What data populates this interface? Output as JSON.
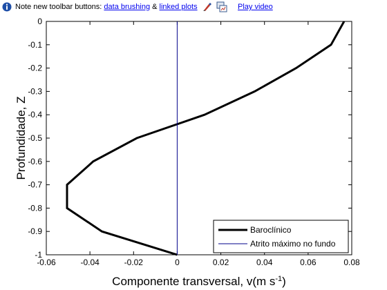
{
  "infobar": {
    "note_prefix": "Note new toolbar buttons: ",
    "link_brushing": "data brushing",
    "amp": " & ",
    "link_linked": "linked plots",
    "play_video": "Play video",
    "info_icon": "info-icon",
    "brush_icon": "data-brushing-icon",
    "link_icon": "linked-plots-icon"
  },
  "colors": {
    "series_baroclinico": "#000000",
    "series_atrito": "#00008b",
    "info_blue": "#1f4fa8"
  },
  "chart_data": {
    "type": "line",
    "title": "",
    "xlabel": "Componente transversal, v(m s",
    "xlabel_sup": "-1",
    "xlabel_end": ")",
    "ylabel": "Profundidade, Z",
    "xlim": [
      -0.06,
      0.08
    ],
    "ylim": [
      -1,
      0
    ],
    "xticks": [
      -0.06,
      -0.04,
      -0.02,
      0,
      0.02,
      0.04,
      0.06,
      0.08
    ],
    "xtick_labels": [
      "-0.06",
      "-0.04",
      "-0.02",
      "0",
      "0.02",
      "0.04",
      "0.06",
      "0.08"
    ],
    "yticks": [
      0,
      -0.1,
      -0.2,
      -0.3,
      -0.4,
      -0.5,
      -0.6,
      -0.7,
      -0.8,
      -0.9,
      -1
    ],
    "ytick_labels": [
      "0",
      "-0.1",
      "-0.2",
      "-0.3",
      "-0.4",
      "-0.5",
      "-0.6",
      "-0.7",
      "-0.8",
      "-0.9",
      "-1"
    ],
    "grid": false,
    "legend_position": "bottom-right",
    "series": [
      {
        "name": "Baroclínico",
        "x": [
          0.0765,
          0.0705,
          0.0545,
          0.0355,
          0.0125,
          -0.0185,
          -0.0385,
          -0.0505,
          -0.0505,
          -0.0345,
          0.0
        ],
        "y": [
          0,
          -0.1,
          -0.2,
          -0.3,
          -0.4,
          -0.5,
          -0.6,
          -0.7,
          -0.8,
          -0.9,
          -1
        ],
        "style": "thick"
      },
      {
        "name": "Atrito máximo no fundo",
        "x": [
          0,
          0
        ],
        "y": [
          0,
          -1
        ],
        "style": "thin"
      }
    ]
  }
}
